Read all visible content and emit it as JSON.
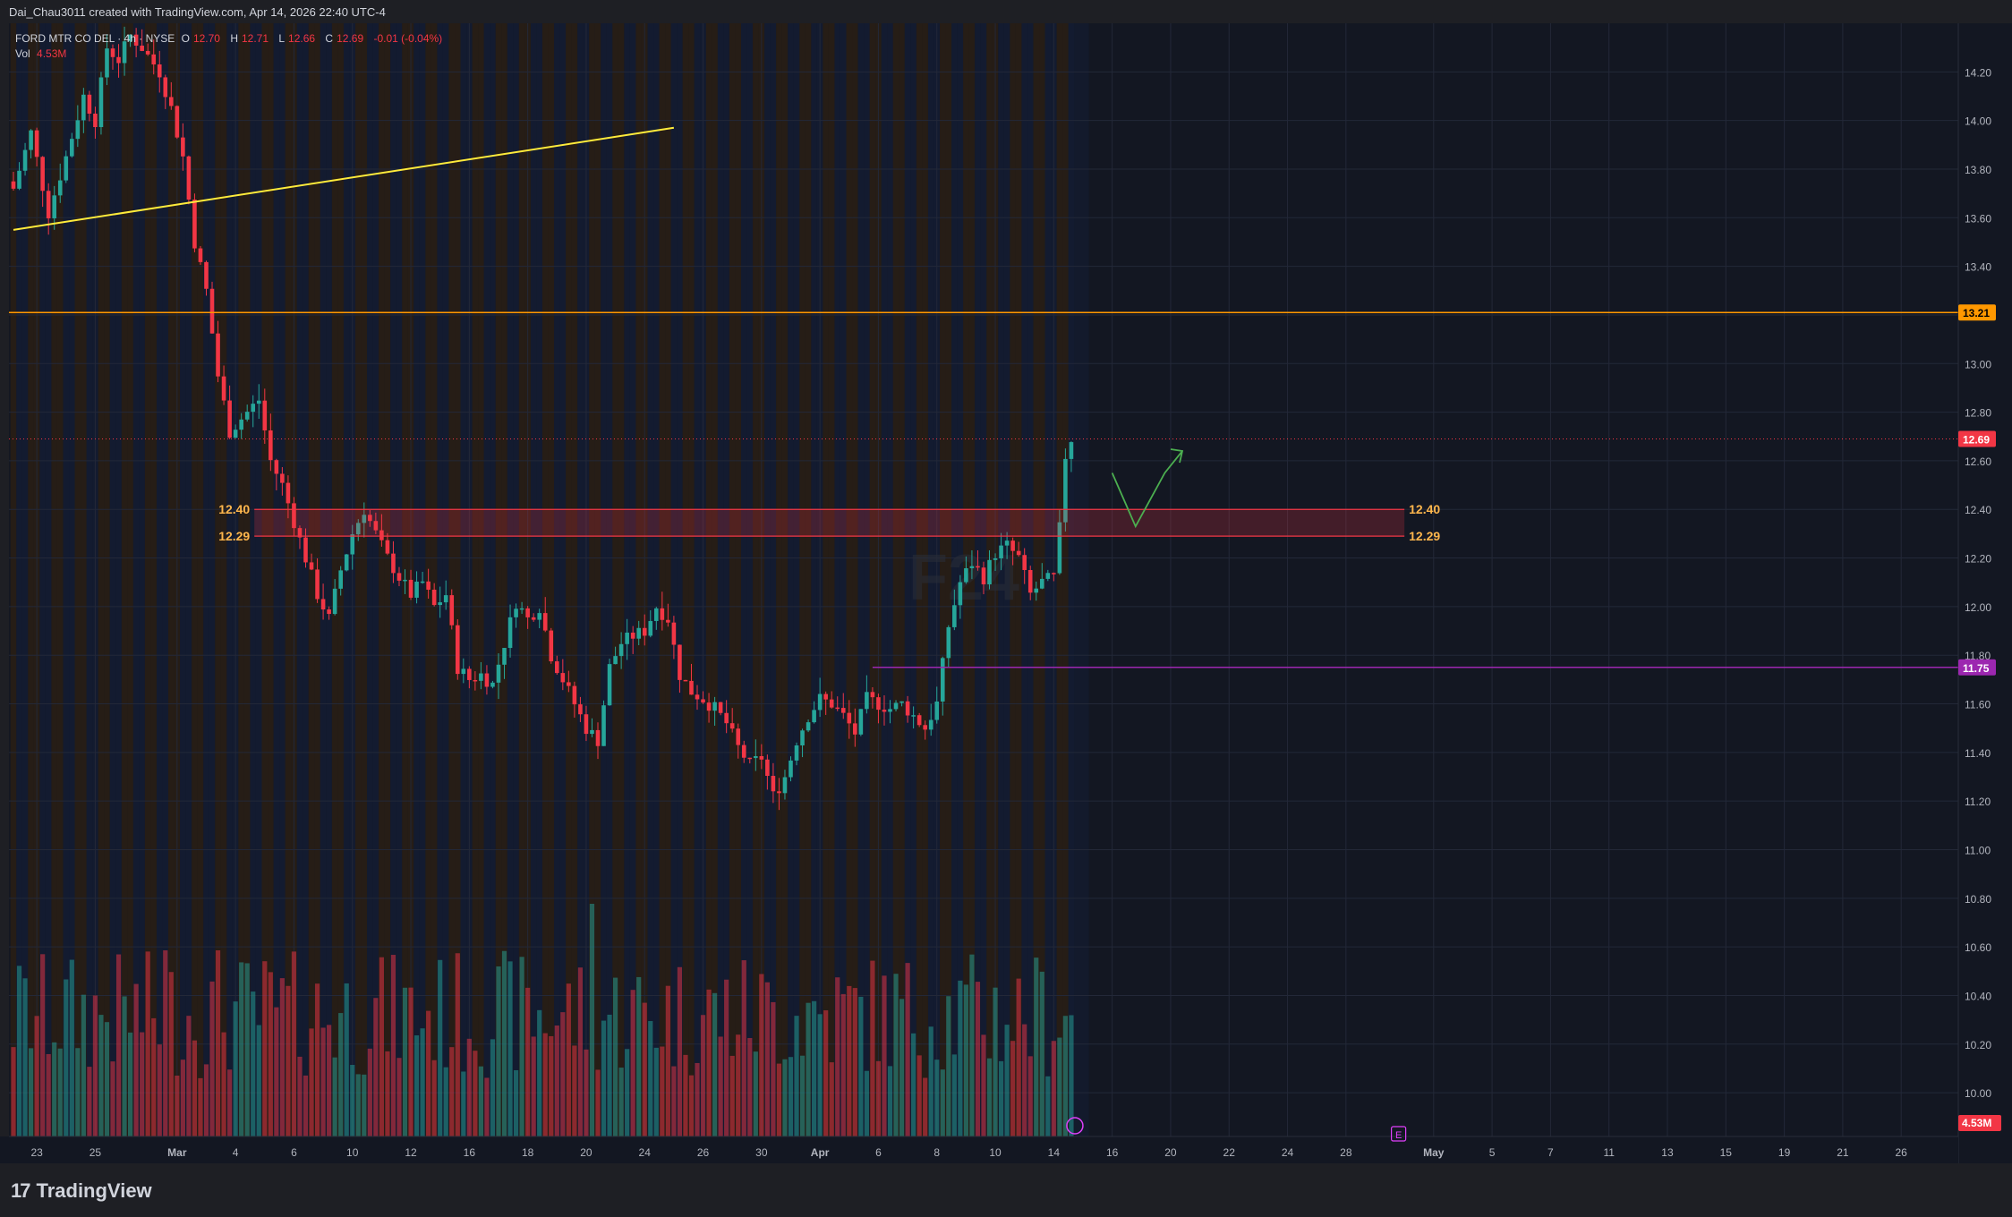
{
  "header": {
    "caption": "Dai_Chau3011 created with TradingView.com, Apr 14, 2026 22:40 UTC-4"
  },
  "legend": {
    "symbol": "FORD MTR CO DEL · 4h · NYSE",
    "open_label": "O",
    "open": "12.70",
    "high_label": "H",
    "high": "12.71",
    "low_label": "L",
    "low": "12.66",
    "close_label": "C",
    "close": "12.69",
    "change": "-0.01 (-0.04%)",
    "vol_label": "Vol",
    "vol": "4.53M"
  },
  "footer": {
    "brand": "TradingView",
    "logo_mark": "17"
  },
  "watermark": "F24",
  "colors": {
    "background": "#131722",
    "up": "#26a69a",
    "down": "#f23645",
    "trendline": "#ffeb3b",
    "resistance": "#ff9800",
    "support": "#9c27b0",
    "zone": "#f23645",
    "arrow": "#4caf50",
    "session_orange": "#2a1f14",
    "session_blue": "#141c33"
  },
  "chart_data": {
    "type": "candlestick",
    "symbol": "FORD MTR CO DEL",
    "interval": "4h",
    "exchange": "NYSE",
    "y_ticks": [
      "14.20",
      "14.00",
      "13.80",
      "13.60",
      "13.40",
      "13.20",
      "13.00",
      "12.80",
      "12.60",
      "12.40",
      "12.20",
      "12.00",
      "11.80",
      "11.60",
      "11.40",
      "11.20",
      "11.00",
      "10.80",
      "10.60",
      "10.40",
      "10.20",
      "10.00"
    ],
    "ylim": [
      9.82,
      14.4
    ],
    "x_ticks": [
      {
        "label": "23",
        "bar": 4
      },
      {
        "label": "25",
        "bar": 14
      },
      {
        "label": "Mar",
        "bar": 28
      },
      {
        "label": "4",
        "bar": 38
      },
      {
        "label": "6",
        "bar": 48
      },
      {
        "label": "10",
        "bar": 58
      },
      {
        "label": "12",
        "bar": 68
      },
      {
        "label": "16",
        "bar": 78
      },
      {
        "label": "18",
        "bar": 88
      },
      {
        "label": "20",
        "bar": 98
      },
      {
        "label": "24",
        "bar": 108
      },
      {
        "label": "26",
        "bar": 118
      },
      {
        "label": "30",
        "bar": 128
      },
      {
        "label": "Apr",
        "bar": 138
      },
      {
        "label": "6",
        "bar": 148
      },
      {
        "label": "8",
        "bar": 158
      },
      {
        "label": "10",
        "bar": 168
      },
      {
        "label": "14",
        "bar": 178
      },
      {
        "label": "16",
        "bar": 188
      },
      {
        "label": "20",
        "bar": 198
      },
      {
        "label": "22",
        "bar": 208
      },
      {
        "label": "24",
        "bar": 218
      },
      {
        "label": "28",
        "bar": 228
      },
      {
        "label": "May",
        "bar": 243
      },
      {
        "label": "5",
        "bar": 253
      },
      {
        "label": "7",
        "bar": 263
      },
      {
        "label": "11",
        "bar": 273
      },
      {
        "label": "13",
        "bar": 283
      },
      {
        "label": "15",
        "bar": 293
      },
      {
        "label": "19",
        "bar": 303
      },
      {
        "label": "21",
        "bar": 313
      },
      {
        "label": "26",
        "bar": 323
      }
    ],
    "last_bar": 181,
    "candle_keypoints": [
      [
        0,
        13.72
      ],
      [
        3,
        13.95
      ],
      [
        6,
        13.62
      ],
      [
        9,
        13.85
      ],
      [
        12,
        14.1
      ],
      [
        14,
        14.0
      ],
      [
        16,
        14.3
      ],
      [
        18,
        14.25
      ],
      [
        20,
        14.35
      ],
      [
        22,
        14.3
      ],
      [
        25,
        14.2
      ],
      [
        27,
        14.05
      ],
      [
        29,
        13.85
      ],
      [
        31,
        13.5
      ],
      [
        33,
        13.3
      ],
      [
        35,
        12.95
      ],
      [
        37,
        12.72
      ],
      [
        40,
        12.8
      ],
      [
        42,
        12.85
      ],
      [
        44,
        12.6
      ],
      [
        46,
        12.5
      ],
      [
        48,
        12.35
      ],
      [
        50,
        12.2
      ],
      [
        52,
        12.05
      ],
      [
        54,
        11.95
      ],
      [
        56,
        12.15
      ],
      [
        58,
        12.3
      ],
      [
        60,
        12.4
      ],
      [
        62,
        12.3
      ],
      [
        64,
        12.2
      ],
      [
        66,
        12.12
      ],
      [
        68,
        12.05
      ],
      [
        70,
        12.1
      ],
      [
        72,
        12.0
      ],
      [
        74,
        12.05
      ],
      [
        76,
        11.75
      ],
      [
        78,
        11.7
      ],
      [
        80,
        11.72
      ],
      [
        82,
        11.68
      ],
      [
        84,
        11.85
      ],
      [
        86,
        12.02
      ],
      [
        88,
        11.95
      ],
      [
        90,
        12.0
      ],
      [
        92,
        11.8
      ],
      [
        94,
        11.7
      ],
      [
        96,
        11.6
      ],
      [
        98,
        11.5
      ],
      [
        100,
        11.45
      ],
      [
        102,
        11.75
      ],
      [
        104,
        11.85
      ],
      [
        106,
        11.88
      ],
      [
        108,
        11.9
      ],
      [
        110,
        12.0
      ],
      [
        112,
        11.95
      ],
      [
        114,
        11.72
      ],
      [
        116,
        11.65
      ],
      [
        118,
        11.62
      ],
      [
        120,
        11.58
      ],
      [
        122,
        11.52
      ],
      [
        124,
        11.42
      ],
      [
        126,
        11.35
      ],
      [
        128,
        11.38
      ],
      [
        130,
        11.22
      ],
      [
        132,
        11.3
      ],
      [
        134,
        11.45
      ],
      [
        136,
        11.55
      ],
      [
        138,
        11.62
      ],
      [
        140,
        11.6
      ],
      [
        142,
        11.55
      ],
      [
        144,
        11.48
      ],
      [
        146,
        11.62
      ],
      [
        148,
        11.6
      ],
      [
        150,
        11.58
      ],
      [
        152,
        11.6
      ],
      [
        154,
        11.55
      ],
      [
        156,
        11.5
      ],
      [
        158,
        11.6
      ],
      [
        160,
        11.92
      ],
      [
        162,
        12.1
      ],
      [
        164,
        12.18
      ],
      [
        166,
        12.12
      ],
      [
        168,
        12.22
      ],
      [
        170,
        12.25
      ],
      [
        172,
        12.2
      ],
      [
        174,
        12.05
      ],
      [
        176,
        12.1
      ],
      [
        178,
        12.12
      ],
      [
        179,
        12.32
      ],
      [
        180,
        12.62
      ],
      [
        181,
        12.69
      ]
    ],
    "annotations": {
      "trendline": {
        "from": {
          "bar": 0,
          "price": 13.55
        },
        "to": {
          "bar": 113,
          "price": 13.97
        }
      },
      "resistance": {
        "price": 13.21,
        "label": "13.21",
        "from_bar": 0
      },
      "zone": {
        "top": 12.4,
        "bottom": 12.29,
        "from_bar": 40,
        "to_bar": 238,
        "top_label": "12.40",
        "bottom_label": "12.29"
      },
      "support": {
        "price": 11.75,
        "label": "11.75",
        "from_bar": 147
      },
      "last_price": {
        "price": 12.69,
        "label": "12.69"
      },
      "volume_label": "4.53M",
      "earnings_marker": {
        "bar": 237,
        "label": "E"
      },
      "projection_arrow": [
        {
          "bar": 188,
          "price": 12.55
        },
        {
          "bar": 192,
          "price": 12.33
        },
        {
          "bar": 197,
          "price": 12.55
        },
        {
          "bar": 200,
          "price": 12.64
        }
      ]
    }
  }
}
